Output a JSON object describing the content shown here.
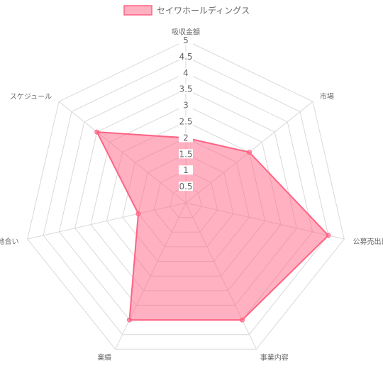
{
  "chart_data": {
    "type": "radar",
    "axes": [
      "吸収金額",
      "市場",
      "公募売出比",
      "事業内容",
      "業績",
      "地合い",
      "スケジュール"
    ],
    "r_ticks": [
      "0.5",
      "1",
      "1.5",
      "2",
      "2.5",
      "3",
      "3.5",
      "4",
      "4.5",
      "5"
    ],
    "rlim": [
      0,
      5
    ],
    "series": [
      {
        "name": "セイワホールディングス",
        "values": [
          2,
          2.5,
          4.5,
          4,
          4,
          1.5,
          3.5
        ],
        "color": "#ff6384"
      }
    ],
    "legend_position": "top",
    "grid": true
  }
}
